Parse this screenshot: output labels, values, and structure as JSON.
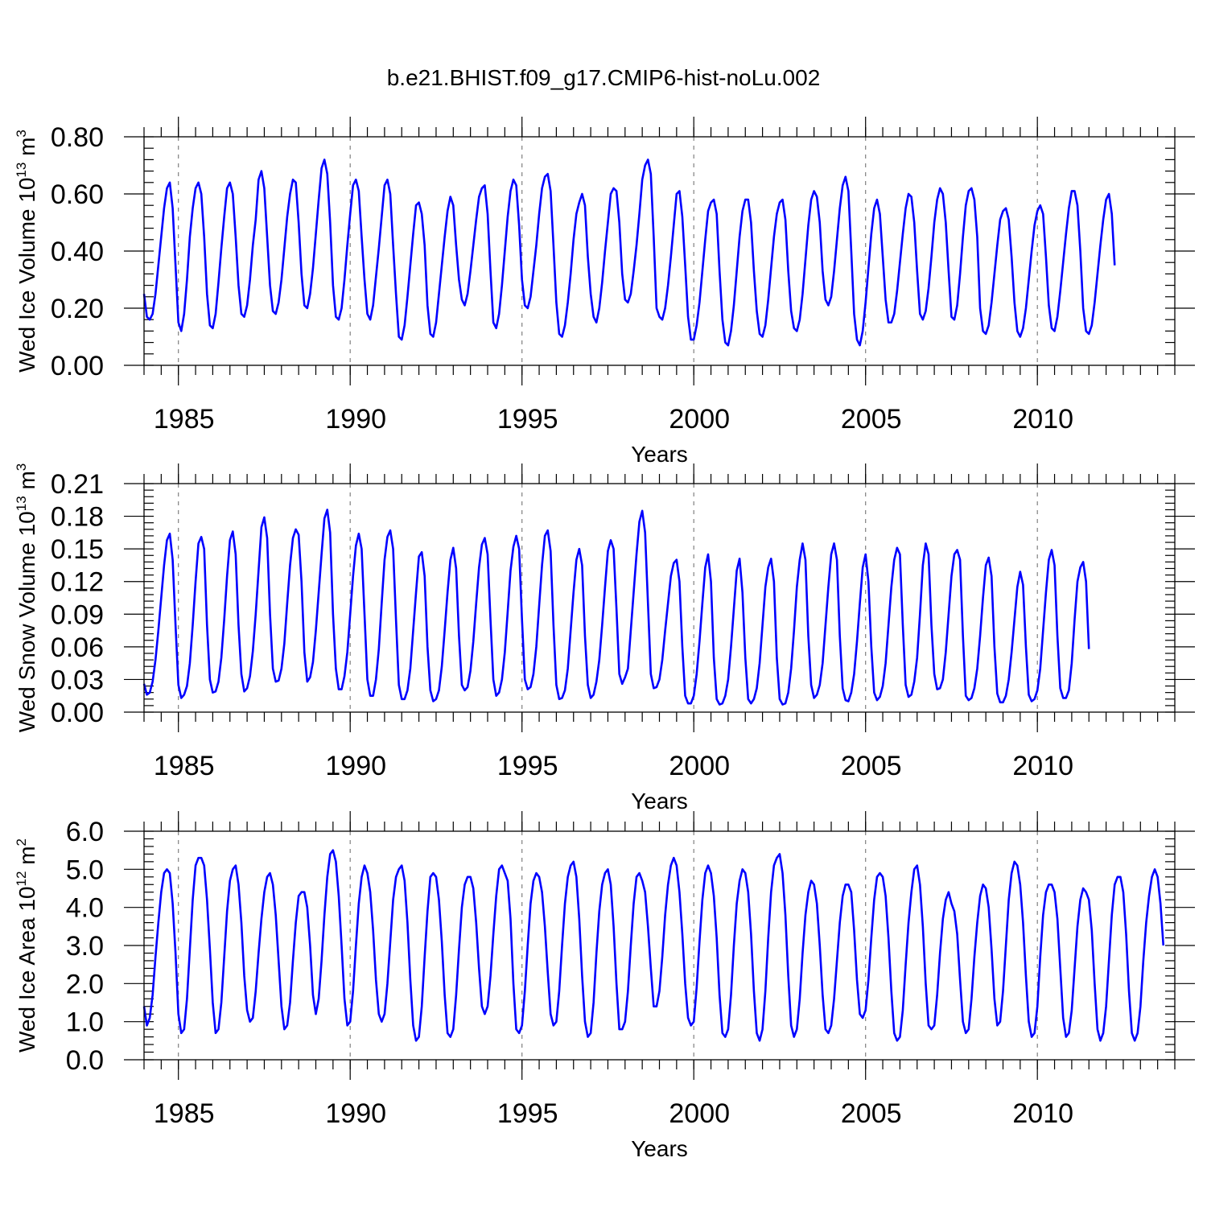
{
  "figure_title": "b.e21.BHIST.f09_g17.CMIP6-hist-noLu.002",
  "chart_data": [
    {
      "type": "line",
      "name": "ice-volume",
      "ylabel": "Wed Ice Volume",
      "ylabel_units_base": "10",
      "ylabel_units_exp": "13",
      "ylabel_units_unit": "m",
      "ylabel_units_unit_exp": "3",
      "xlabel": "Years",
      "xlim": [
        1984.0,
        2014.0
      ],
      "ylim": [
        0.0,
        0.8
      ],
      "yticks": [
        0.0,
        0.2,
        0.4,
        0.6,
        0.8
      ],
      "ytick_labels": [
        "0.00",
        "0.20",
        "0.40",
        "0.60",
        "0.80"
      ],
      "yminor_step": 0.04,
      "xticks": [
        1985,
        1990,
        1995,
        2000,
        2005,
        2010
      ],
      "xtick_labels": [
        "1985",
        "1990",
        "1995",
        "2000",
        "2005",
        "2010"
      ],
      "series_color": "#0000ff",
      "series_name": "Wed Ice Volume",
      "start_year": 1984.0,
      "step": 0.083333,
      "values": [
        0.25,
        0.17,
        0.16,
        0.18,
        0.25,
        0.35,
        0.45,
        0.55,
        0.62,
        0.64,
        0.55,
        0.35,
        0.15,
        0.12,
        0.18,
        0.3,
        0.45,
        0.55,
        0.62,
        0.64,
        0.6,
        0.45,
        0.25,
        0.14,
        0.13,
        0.18,
        0.29,
        0.41,
        0.52,
        0.62,
        0.64,
        0.6,
        0.45,
        0.28,
        0.18,
        0.17,
        0.21,
        0.3,
        0.42,
        0.51,
        0.65,
        0.68,
        0.62,
        0.45,
        0.28,
        0.19,
        0.18,
        0.22,
        0.3,
        0.41,
        0.52,
        0.6,
        0.65,
        0.64,
        0.5,
        0.32,
        0.21,
        0.2,
        0.25,
        0.34,
        0.46,
        0.58,
        0.69,
        0.72,
        0.67,
        0.5,
        0.28,
        0.17,
        0.16,
        0.2,
        0.3,
        0.42,
        0.53,
        0.63,
        0.65,
        0.61,
        0.45,
        0.3,
        0.18,
        0.16,
        0.21,
        0.31,
        0.41,
        0.52,
        0.63,
        0.65,
        0.6,
        0.42,
        0.25,
        0.1,
        0.09,
        0.14,
        0.24,
        0.35,
        0.46,
        0.56,
        0.57,
        0.53,
        0.42,
        0.21,
        0.11,
        0.1,
        0.15,
        0.25,
        0.35,
        0.45,
        0.54,
        0.59,
        0.56,
        0.42,
        0.3,
        0.23,
        0.21,
        0.25,
        0.33,
        0.42,
        0.51,
        0.59,
        0.62,
        0.63,
        0.53,
        0.33,
        0.15,
        0.13,
        0.18,
        0.28,
        0.4,
        0.52,
        0.61,
        0.65,
        0.63,
        0.49,
        0.3,
        0.21,
        0.2,
        0.24,
        0.33,
        0.42,
        0.53,
        0.62,
        0.66,
        0.67,
        0.61,
        0.42,
        0.22,
        0.11,
        0.1,
        0.14,
        0.22,
        0.32,
        0.44,
        0.53,
        0.57,
        0.6,
        0.56,
        0.38,
        0.25,
        0.17,
        0.15,
        0.2,
        0.29,
        0.4,
        0.5,
        0.6,
        0.62,
        0.61,
        0.5,
        0.32,
        0.23,
        0.22,
        0.25,
        0.33,
        0.42,
        0.53,
        0.65,
        0.7,
        0.72,
        0.67,
        0.45,
        0.2,
        0.17,
        0.16,
        0.2,
        0.28,
        0.38,
        0.49,
        0.6,
        0.61,
        0.52,
        0.35,
        0.17,
        0.09,
        0.09,
        0.14,
        0.22,
        0.33,
        0.44,
        0.54,
        0.57,
        0.58,
        0.53,
        0.33,
        0.16,
        0.08,
        0.07,
        0.12,
        0.21,
        0.33,
        0.45,
        0.54,
        0.58,
        0.58,
        0.5,
        0.33,
        0.19,
        0.11,
        0.1,
        0.14,
        0.23,
        0.34,
        0.45,
        0.53,
        0.57,
        0.58,
        0.51,
        0.33,
        0.19,
        0.13,
        0.12,
        0.16,
        0.25,
        0.37,
        0.49,
        0.58,
        0.61,
        0.59,
        0.5,
        0.33,
        0.23,
        0.21,
        0.24,
        0.33,
        0.44,
        0.55,
        0.63,
        0.66,
        0.61,
        0.4,
        0.18,
        0.09,
        0.07,
        0.12,
        0.22,
        0.34,
        0.46,
        0.55,
        0.58,
        0.53,
        0.38,
        0.23,
        0.15,
        0.15,
        0.18,
        0.26,
        0.36,
        0.46,
        0.55,
        0.6,
        0.59,
        0.5,
        0.33,
        0.18,
        0.16,
        0.19,
        0.27,
        0.38,
        0.5,
        0.58,
        0.62,
        0.6,
        0.5,
        0.33,
        0.17,
        0.16,
        0.21,
        0.32,
        0.45,
        0.56,
        0.61,
        0.62,
        0.58,
        0.45,
        0.2,
        0.12,
        0.11,
        0.14,
        0.22,
        0.32,
        0.42,
        0.51,
        0.54,
        0.55,
        0.51,
        0.38,
        0.22,
        0.12,
        0.1,
        0.13,
        0.2,
        0.3,
        0.4,
        0.49,
        0.54,
        0.56,
        0.53,
        0.38,
        0.21,
        0.13,
        0.12,
        0.17,
        0.26,
        0.36,
        0.46,
        0.55,
        0.61,
        0.61,
        0.56,
        0.4,
        0.2,
        0.12,
        0.11,
        0.14,
        0.22,
        0.32,
        0.42,
        0.51,
        0.58,
        0.6,
        0.53,
        0.35
      ]
    },
    {
      "type": "line",
      "name": "snow-volume",
      "ylabel": "Wed Snow Volume",
      "ylabel_units_base": "10",
      "ylabel_units_exp": "13",
      "ylabel_units_unit": "m",
      "ylabel_units_unit_exp": "3",
      "xlabel": "Years",
      "xlim": [
        1984.0,
        2014.0
      ],
      "ylim": [
        0.0,
        0.21
      ],
      "yticks": [
        0.0,
        0.03,
        0.06,
        0.09,
        0.12,
        0.15,
        0.18,
        0.21
      ],
      "ytick_labels": [
        "0.00",
        "0.03",
        "0.06",
        "0.09",
        "0.12",
        "0.15",
        "0.18",
        "0.21"
      ],
      "yminor_step": 0.006,
      "xticks": [
        1985,
        1990,
        1995,
        2000,
        2005,
        2010
      ],
      "xtick_labels": [
        "1985",
        "1990",
        "1995",
        "2000",
        "2005",
        "2010"
      ],
      "series_color": "#0000ff",
      "series_name": "Wed Snow Volume",
      "start_year": 1984.0,
      "step": 0.083333,
      "values": [
        0.026,
        0.016,
        0.018,
        0.028,
        0.048,
        0.075,
        0.105,
        0.135,
        0.158,
        0.164,
        0.14,
        0.08,
        0.025,
        0.013,
        0.016,
        0.024,
        0.045,
        0.08,
        0.12,
        0.155,
        0.161,
        0.15,
        0.08,
        0.03,
        0.018,
        0.019,
        0.028,
        0.05,
        0.085,
        0.125,
        0.158,
        0.166,
        0.145,
        0.08,
        0.035,
        0.019,
        0.022,
        0.033,
        0.056,
        0.09,
        0.13,
        0.17,
        0.179,
        0.16,
        0.09,
        0.04,
        0.028,
        0.029,
        0.04,
        0.063,
        0.1,
        0.135,
        0.16,
        0.168,
        0.163,
        0.12,
        0.055,
        0.028,
        0.032,
        0.046,
        0.075,
        0.11,
        0.145,
        0.178,
        0.186,
        0.165,
        0.09,
        0.04,
        0.021,
        0.021,
        0.033,
        0.055,
        0.09,
        0.125,
        0.153,
        0.164,
        0.15,
        0.09,
        0.03,
        0.015,
        0.015,
        0.03,
        0.058,
        0.1,
        0.14,
        0.161,
        0.167,
        0.15,
        0.085,
        0.025,
        0.012,
        0.012,
        0.02,
        0.04,
        0.075,
        0.11,
        0.143,
        0.147,
        0.125,
        0.06,
        0.02,
        0.01,
        0.012,
        0.02,
        0.042,
        0.075,
        0.11,
        0.14,
        0.151,
        0.132,
        0.07,
        0.025,
        0.02,
        0.023,
        0.038,
        0.065,
        0.1,
        0.133,
        0.154,
        0.16,
        0.145,
        0.085,
        0.03,
        0.015,
        0.018,
        0.03,
        0.055,
        0.092,
        0.13,
        0.152,
        0.162,
        0.15,
        0.085,
        0.03,
        0.021,
        0.023,
        0.035,
        0.06,
        0.098,
        0.135,
        0.162,
        0.167,
        0.148,
        0.08,
        0.025,
        0.012,
        0.013,
        0.02,
        0.04,
        0.075,
        0.11,
        0.14,
        0.15,
        0.135,
        0.07,
        0.025,
        0.013,
        0.016,
        0.028,
        0.048,
        0.08,
        0.115,
        0.148,
        0.158,
        0.15,
        0.095,
        0.035,
        0.026,
        0.032,
        0.04,
        0.075,
        0.11,
        0.145,
        0.175,
        0.185,
        0.165,
        0.1,
        0.035,
        0.022,
        0.023,
        0.03,
        0.048,
        0.075,
        0.1,
        0.125,
        0.137,
        0.14,
        0.12,
        0.06,
        0.015,
        0.008,
        0.008,
        0.015,
        0.035,
        0.065,
        0.1,
        0.133,
        0.145,
        0.12,
        0.05,
        0.012,
        0.007,
        0.008,
        0.015,
        0.03,
        0.06,
        0.095,
        0.13,
        0.141,
        0.11,
        0.05,
        0.012,
        0.008,
        0.012,
        0.022,
        0.045,
        0.08,
        0.115,
        0.133,
        0.141,
        0.12,
        0.05,
        0.012,
        0.007,
        0.008,
        0.018,
        0.04,
        0.075,
        0.115,
        0.14,
        0.155,
        0.14,
        0.07,
        0.025,
        0.013,
        0.016,
        0.025,
        0.045,
        0.08,
        0.115,
        0.145,
        0.155,
        0.14,
        0.07,
        0.022,
        0.011,
        0.01,
        0.018,
        0.035,
        0.065,
        0.1,
        0.133,
        0.145,
        0.12,
        0.06,
        0.018,
        0.011,
        0.014,
        0.024,
        0.045,
        0.08,
        0.115,
        0.14,
        0.151,
        0.145,
        0.08,
        0.025,
        0.014,
        0.016,
        0.028,
        0.05,
        0.09,
        0.135,
        0.155,
        0.145,
        0.08,
        0.035,
        0.021,
        0.022,
        0.03,
        0.055,
        0.09,
        0.125,
        0.145,
        0.149,
        0.14,
        0.07,
        0.015,
        0.011,
        0.013,
        0.022,
        0.04,
        0.07,
        0.105,
        0.135,
        0.142,
        0.125,
        0.06,
        0.017,
        0.009,
        0.009,
        0.015,
        0.03,
        0.055,
        0.085,
        0.115,
        0.129,
        0.117,
        0.06,
        0.016,
        0.01,
        0.012,
        0.02,
        0.04,
        0.075,
        0.11,
        0.14,
        0.149,
        0.135,
        0.07,
        0.022,
        0.013,
        0.013,
        0.02,
        0.045,
        0.085,
        0.12,
        0.133,
        0.138,
        0.12,
        0.058
      ]
    },
    {
      "type": "line",
      "name": "ice-area",
      "ylabel": "Wed Ice Area",
      "ylabel_units_base": "10",
      "ylabel_units_exp": "12",
      "ylabel_units_unit": "m",
      "ylabel_units_unit_exp": "2",
      "xlabel": "Years",
      "xlim": [
        1984.0,
        2014.0
      ],
      "ylim": [
        0.0,
        6.0
      ],
      "yticks": [
        0.0,
        1.0,
        2.0,
        3.0,
        4.0,
        5.0,
        6.0
      ],
      "ytick_labels": [
        "0.0",
        "1.0",
        "2.0",
        "3.0",
        "4.0",
        "5.0",
        "6.0"
      ],
      "yminor_step": 0.2,
      "xticks": [
        1985,
        1990,
        1995,
        2000,
        2005,
        2010
      ],
      "xtick_labels": [
        "1985",
        "1990",
        "1995",
        "2000",
        "2005",
        "2010"
      ],
      "series_color": "#0000ff",
      "series_name": "Wed Ice Area",
      "start_year": 1984.0,
      "step": 0.083333,
      "values": [
        1.4,
        0.9,
        1.1,
        1.7,
        2.7,
        3.6,
        4.4,
        4.9,
        5.0,
        4.9,
        4.1,
        2.8,
        1.2,
        0.7,
        0.8,
        1.6,
        2.9,
        4.2,
        5.1,
        5.3,
        5.3,
        5.1,
        4.2,
        2.9,
        1.5,
        0.7,
        0.8,
        1.5,
        2.7,
        3.9,
        4.7,
        5.0,
        5.1,
        4.6,
        3.6,
        2.2,
        1.3,
        1.0,
        1.1,
        1.8,
        2.8,
        3.7,
        4.4,
        4.8,
        4.9,
        4.6,
        3.8,
        2.6,
        1.4,
        0.8,
        0.9,
        1.5,
        2.6,
        3.6,
        4.3,
        4.4,
        4.4,
        4.0,
        3.0,
        1.7,
        1.2,
        1.6,
        2.6,
        3.8,
        4.8,
        5.4,
        5.5,
        5.2,
        4.3,
        3.0,
        1.6,
        0.9,
        1.0,
        1.8,
        3.0,
        4.1,
        4.8,
        5.1,
        4.9,
        4.4,
        3.4,
        2.1,
        1.2,
        1.0,
        1.2,
        2.0,
        3.1,
        4.2,
        4.8,
        5.0,
        5.1,
        4.7,
        3.6,
        2.1,
        0.9,
        0.5,
        0.6,
        1.4,
        2.7,
        3.9,
        4.8,
        4.9,
        4.8,
        4.2,
        3.1,
        1.7,
        0.7,
        0.6,
        0.8,
        1.7,
        2.9,
        4.0,
        4.6,
        4.8,
        4.8,
        4.5,
        3.6,
        2.4,
        1.4,
        1.2,
        1.4,
        2.2,
        3.3,
        4.3,
        5.0,
        5.1,
        4.9,
        4.7,
        3.7,
        2.0,
        0.8,
        0.7,
        0.9,
        1.8,
        3.0,
        4.1,
        4.7,
        4.9,
        4.8,
        4.4,
        3.5,
        2.3,
        1.2,
        0.9,
        1.0,
        1.8,
        3.0,
        4.1,
        4.8,
        5.1,
        5.2,
        4.8,
        3.7,
        2.2,
        1.0,
        0.6,
        0.7,
        1.5,
        2.8,
        3.9,
        4.6,
        4.9,
        5.0,
        4.6,
        3.5,
        2.0,
        0.8,
        0.8,
        1.0,
        1.8,
        3.0,
        4.1,
        4.8,
        4.9,
        4.7,
        4.4,
        3.5,
        2.4,
        1.4,
        1.4,
        1.8,
        2.7,
        3.8,
        4.6,
        5.1,
        5.3,
        5.1,
        4.4,
        3.3,
        2.0,
        1.1,
        0.9,
        1.0,
        1.9,
        3.1,
        4.2,
        4.9,
        5.1,
        4.9,
        4.3,
        3.2,
        1.7,
        0.7,
        0.6,
        0.8,
        1.7,
        3.0,
        4.1,
        4.7,
        5.0,
        4.9,
        4.4,
        3.3,
        1.8,
        0.7,
        0.5,
        0.8,
        1.8,
        3.2,
        4.4,
        5.1,
        5.3,
        5.4,
        4.9,
        3.8,
        2.2,
        0.9,
        0.6,
        0.8,
        1.6,
        2.8,
        3.8,
        4.4,
        4.7,
        4.6,
        4.1,
        3.0,
        1.7,
        0.8,
        0.7,
        0.9,
        1.6,
        2.6,
        3.6,
        4.3,
        4.6,
        4.6,
        4.4,
        3.4,
        2.1,
        1.2,
        1.1,
        1.3,
        2.1,
        3.2,
        4.2,
        4.8,
        4.9,
        4.8,
        4.3,
        3.2,
        1.8,
        0.7,
        0.5,
        0.6,
        1.3,
        2.5,
        3.6,
        4.4,
        5.0,
        5.1,
        4.6,
        3.5,
        2.0,
        0.9,
        0.8,
        0.9,
        1.7,
        2.8,
        3.7,
        4.2,
        4.4,
        4.1,
        3.9,
        3.3,
        2.1,
        1.0,
        0.7,
        0.8,
        1.6,
        2.7,
        3.6,
        4.3,
        4.6,
        4.5,
        4.0,
        2.9,
        1.6,
        0.9,
        1.0,
        1.8,
        3.0,
        4.2,
        4.9,
        5.2,
        5.1,
        4.6,
        3.6,
        2.2,
        1.0,
        0.6,
        0.7,
        1.4,
        2.7,
        3.8,
        4.4,
        4.6,
        4.6,
        4.4,
        3.7,
        2.4,
        1.1,
        0.6,
        0.7,
        1.3,
        2.4,
        3.5,
        4.2,
        4.5,
        4.4,
        4.2,
        3.4,
        2.0,
        0.8,
        0.5,
        0.7,
        1.4,
        2.6,
        3.8,
        4.6,
        4.8,
        4.8,
        4.4,
        3.3,
        1.8,
        0.7,
        0.5,
        0.7,
        1.4,
        2.6,
        3.6,
        4.3,
        4.8,
        5.0,
        4.8,
        4.1,
        3.0
      ]
    }
  ]
}
